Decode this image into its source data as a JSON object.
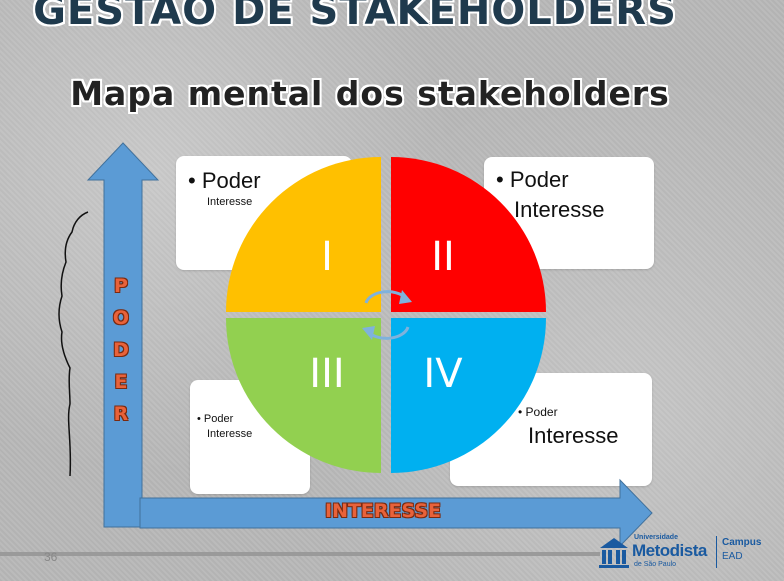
{
  "slide": {
    "title": "GESTÃO DE STAKEHOLDERS",
    "subtitle": "Mapa mental dos stakeholders",
    "page_number": "36"
  },
  "axes": {
    "y_label_letters": [
      "P",
      "O",
      "D",
      "E",
      "R"
    ],
    "x_label": "INTERESSE",
    "arrow_color": "#5b9bd5",
    "label_color": "#e8623a"
  },
  "quadrants": [
    {
      "numeral": "I",
      "color": "#ffc000"
    },
    {
      "numeral": "II",
      "color": "#ff0000"
    },
    {
      "numeral": "III",
      "color": "#92d050"
    },
    {
      "numeral": "IV",
      "color": "#00b0f0"
    }
  ],
  "cards": {
    "top_left": {
      "bullet": "Poder",
      "second": "Interesse"
    },
    "top_right": {
      "bullet": "Poder",
      "second": "Interesse"
    },
    "bottom_left": {
      "bullet": "Poder",
      "second": "Interesse"
    },
    "bottom_right": {
      "bullet": "Poder",
      "second": "Interesse"
    }
  },
  "logo": {
    "university": "Universidade",
    "name": "Metodista",
    "location": "de São Paulo",
    "campus": "Campus",
    "ead": "EAD",
    "icon": "institution-logo"
  }
}
